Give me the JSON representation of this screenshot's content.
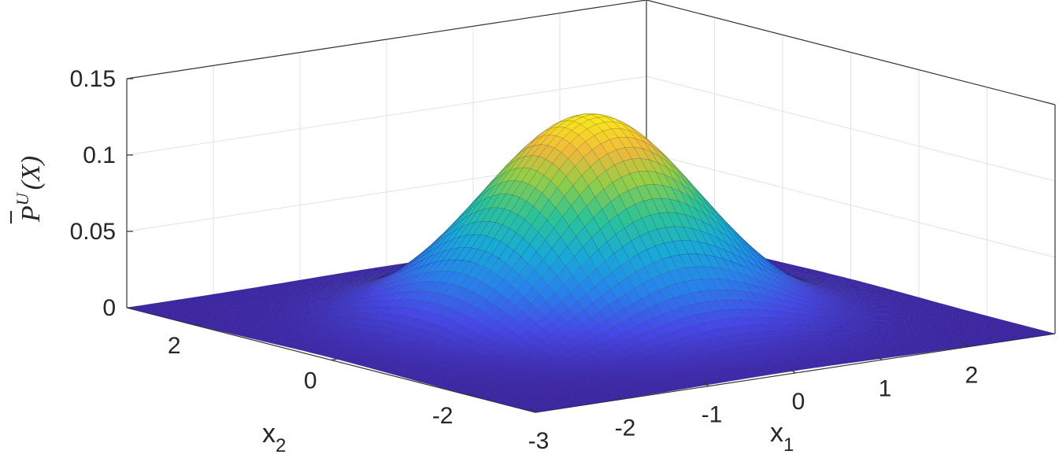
{
  "chart_data": {
    "type": "surface",
    "xlabel": "x",
    "xlabel_sub": "1",
    "ylabel": "x",
    "ylabel_sub": "2",
    "zlabel": {
      "base": "(X)",
      "symbol": "P",
      "superscript": "U"
    },
    "xlim": [
      -3,
      3
    ],
    "ylim": [
      -3,
      3
    ],
    "zlim": [
      0,
      0.15
    ],
    "x_ticks": [
      {
        "value": -3,
        "label": "-3"
      },
      {
        "value": -2,
        "label": "-2"
      },
      {
        "value": -1,
        "label": "-1"
      },
      {
        "value": 0,
        "label": "0"
      },
      {
        "value": 1,
        "label": "1"
      },
      {
        "value": 2,
        "label": "2"
      }
    ],
    "y_ticks": [
      {
        "value": -2,
        "label": "-2"
      },
      {
        "value": 0,
        "label": "0"
      },
      {
        "value": 2,
        "label": "2"
      }
    ],
    "z_ticks": [
      {
        "value": 0,
        "label": "0"
      },
      {
        "value": 0.05,
        "label": "0.05"
      },
      {
        "value": 0.1,
        "label": "0.1"
      },
      {
        "value": 0.15,
        "label": "0.15"
      }
    ],
    "surface": {
      "function": "gaussian",
      "peak": 0.135,
      "sigma": 1.0,
      "center": [
        0,
        0
      ]
    },
    "colormap": "parula",
    "grid": true
  }
}
